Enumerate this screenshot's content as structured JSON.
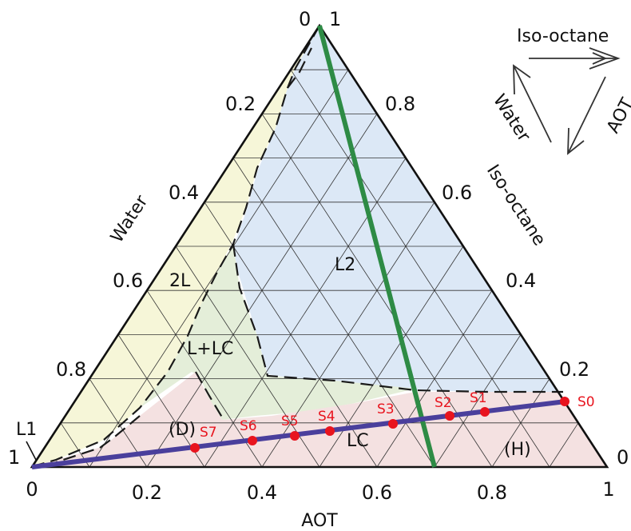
{
  "axes": {
    "bottom_name": "AOT",
    "left_name": "Water",
    "right_name": "Iso-octane",
    "bottom_ticks": [
      "0",
      "0.2",
      "0.4",
      "0.6",
      "0.8",
      "1"
    ],
    "left_ticks": [
      "0.2",
      "0.4",
      "0.6",
      "0.8"
    ],
    "right_ticks": [
      "0.8",
      "0.6",
      "0.4",
      "0.2"
    ],
    "corner_top_left": "0",
    "corner_top_right": "1",
    "corner_left": "1",
    "corner_right": "0"
  },
  "regions": {
    "l2": "L2",
    "two_l": "2L",
    "l_lc": "L+LC",
    "lc": "LC",
    "d": "(D)",
    "h": "(H)",
    "l1": "L1"
  },
  "samples": [
    {
      "label": "S0"
    },
    {
      "label": "S1"
    },
    {
      "label": "S2"
    },
    {
      "label": "S3"
    },
    {
      "label": "S4"
    },
    {
      "label": "S5"
    },
    {
      "label": "S6"
    },
    {
      "label": "S7"
    }
  ],
  "legend": {
    "top": "Iso-octane",
    "left": "Water",
    "right": "AOT"
  },
  "colors": {
    "l2_fill": "#dce8f6",
    "two_l_fill": "#f6f6d8",
    "l_lc_fill": "#e4eed9",
    "lc_fill": "#f4e1e1",
    "green_line": "#2e8b45",
    "purple_line": "#4a3f9c",
    "sample_red": "#e8141e"
  }
}
